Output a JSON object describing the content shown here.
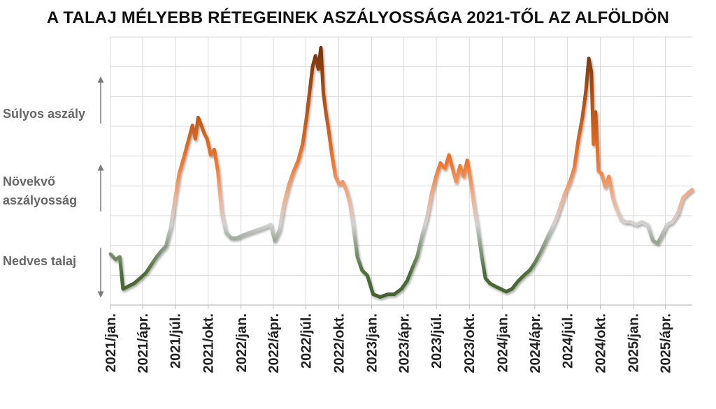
{
  "chart_data": {
    "type": "line",
    "title": "A TALAJ MÉLYEBB RÉTEGEINEK ASZÁLYOSSÁGA 2021-TŐL AZ ALFÖLDÖN",
    "xlabel": "",
    "ylabel": "",
    "x_ticks": [
      "2021/jan.",
      "2021/ápr.",
      "2021/júl.",
      "2021/okt.",
      "2022/jan.",
      "2022/ápr.",
      "2022/júl.",
      "2022/okt.",
      "2023/jan.",
      "2023/ápr.",
      "2023/júl.",
      "2023/okt.",
      "2024/jan.",
      "2024/ápr.",
      "2024/júl.",
      "2024/okt.",
      "2025/jan.",
      "2025/ápr."
    ],
    "x_range": [
      "2021-01-01",
      "2025-06-15"
    ],
    "y_levels": [
      {
        "label": "Súlyos aszály",
        "range": [
          0.6,
          1.0
        ]
      },
      {
        "label": "Növekvő aszályosság",
        "range": [
          0.3,
          0.6
        ]
      },
      {
        "label": "Nedves talaj",
        "range": [
          0.0,
          0.3
        ]
      }
    ],
    "y_scale": "index from 0 (nedves talaj) to 1 (súlyos aszály), no printed scale",
    "ylim": [
      0,
      1
    ],
    "grid": true,
    "legend": "none",
    "colors": {
      "wet": "#3f5e2a",
      "neutral": "#c9c9c9",
      "growing": "#f07a30",
      "severe": "#7c340b"
    },
    "series": [
      {
        "x": [
          "2021-01-01",
          "2021-01-15",
          "2021-01-27",
          "2021-02-05",
          "2021-02-20",
          "2021-03-07",
          "2021-03-25",
          "2021-04-10",
          "2021-04-25",
          "2021-05-10",
          "2021-05-22",
          "2021-06-05",
          "2021-06-18",
          "2021-07-01",
          "2021-07-12",
          "2021-07-25",
          "2021-08-08",
          "2021-08-18",
          "2021-08-26",
          "2021-09-03",
          "2021-09-12",
          "2021-09-20",
          "2021-09-28",
          "2021-10-08",
          "2021-10-18",
          "2021-10-28",
          "2021-11-08",
          "2021-11-20",
          "2021-12-05",
          "2021-12-20",
          "2022-01-05",
          "2022-01-25",
          "2022-02-15",
          "2022-03-08",
          "2022-03-25",
          "2022-04-05",
          "2022-04-18",
          "2022-05-01",
          "2022-05-15",
          "2022-05-28",
          "2022-06-10",
          "2022-06-22",
          "2022-07-03",
          "2022-07-12",
          "2022-07-20",
          "2022-07-28",
          "2022-08-05",
          "2022-08-12",
          "2022-08-19",
          "2022-08-26",
          "2022-09-03",
          "2022-09-12",
          "2022-09-22",
          "2022-10-02",
          "2022-10-12",
          "2022-10-22",
          "2022-11-01",
          "2022-11-10",
          "2022-11-22",
          "2022-12-05",
          "2022-12-20",
          "2023-01-05",
          "2023-01-25",
          "2023-02-15",
          "2023-03-05",
          "2023-03-25",
          "2023-04-10",
          "2023-04-25",
          "2023-05-08",
          "2023-05-22",
          "2023-06-05",
          "2023-06-18",
          "2023-06-30",
          "2023-07-12",
          "2023-07-25",
          "2023-08-05",
          "2023-08-15",
          "2023-08-25",
          "2023-09-05",
          "2023-09-15",
          "2023-09-25",
          "2023-10-05",
          "2023-10-15",
          "2023-10-25",
          "2023-11-05",
          "2023-11-15",
          "2023-11-28",
          "2023-12-12",
          "2023-12-28",
          "2024-01-12",
          "2024-01-28",
          "2024-02-15",
          "2024-03-01",
          "2024-03-18",
          "2024-04-02",
          "2024-04-18",
          "2024-05-02",
          "2024-05-16",
          "2024-05-30",
          "2024-06-12",
          "2024-06-25",
          "2024-07-08",
          "2024-07-20",
          "2024-08-01",
          "2024-08-12",
          "2024-08-22",
          "2024-08-30",
          "2024-09-06",
          "2024-09-12",
          "2024-09-18",
          "2024-09-26",
          "2024-10-05",
          "2024-10-15",
          "2024-10-25",
          "2024-11-05",
          "2024-11-15",
          "2024-11-28",
          "2024-12-10",
          "2024-12-25",
          "2025-01-10",
          "2025-01-25",
          "2025-02-10",
          "2025-02-25",
          "2025-03-10",
          "2025-03-22",
          "2025-04-05",
          "2025-04-20",
          "2025-05-05",
          "2025-05-20",
          "2025-06-05",
          "2025-06-15"
        ],
        "values": [
          0.19,
          0.17,
          0.18,
          0.06,
          0.07,
          0.08,
          0.1,
          0.12,
          0.15,
          0.18,
          0.2,
          0.22,
          0.29,
          0.4,
          0.49,
          0.55,
          0.62,
          0.67,
          0.62,
          0.7,
          0.67,
          0.64,
          0.62,
          0.56,
          0.58,
          0.5,
          0.34,
          0.27,
          0.25,
          0.25,
          0.26,
          0.27,
          0.28,
          0.29,
          0.3,
          0.24,
          0.28,
          0.38,
          0.45,
          0.5,
          0.54,
          0.6,
          0.7,
          0.8,
          0.89,
          0.93,
          0.88,
          0.96,
          0.79,
          0.72,
          0.65,
          0.56,
          0.48,
          0.45,
          0.46,
          0.43,
          0.38,
          0.3,
          0.18,
          0.13,
          0.11,
          0.04,
          0.03,
          0.04,
          0.04,
          0.06,
          0.09,
          0.14,
          0.18,
          0.26,
          0.33,
          0.42,
          0.48,
          0.53,
          0.51,
          0.56,
          0.51,
          0.46,
          0.52,
          0.48,
          0.54,
          0.46,
          0.36,
          0.28,
          0.18,
          0.1,
          0.08,
          0.07,
          0.06,
          0.05,
          0.06,
          0.09,
          0.11,
          0.13,
          0.16,
          0.2,
          0.24,
          0.28,
          0.32,
          0.37,
          0.42,
          0.46,
          0.51,
          0.62,
          0.7,
          0.8,
          0.92,
          0.87,
          0.6,
          0.72,
          0.5,
          0.49,
          0.44,
          0.48,
          0.4,
          0.36,
          0.32,
          0.31,
          0.31,
          0.3,
          0.31,
          0.3,
          0.24,
          0.23,
          0.26,
          0.3,
          0.31,
          0.34,
          0.4,
          0.42,
          0.43
        ]
      }
    ]
  },
  "side_labels": {
    "severe": "Súlyos aszály",
    "growing": "Növekvő aszályosság",
    "wet": "Nedves talaj"
  }
}
